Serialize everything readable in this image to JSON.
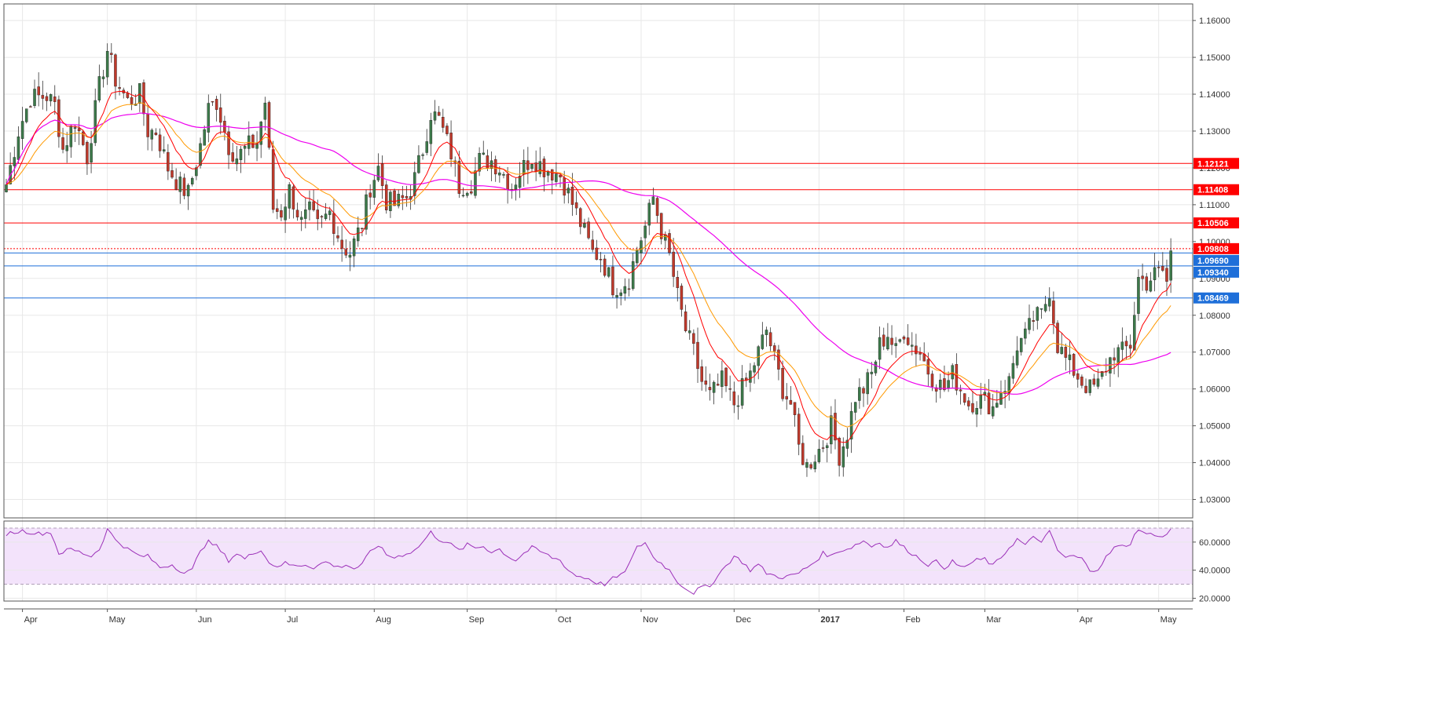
{
  "colors": {
    "up_candle": "#3c7a4a",
    "down_candle": "#c0392b",
    "wick": "#333333",
    "ema_fast": "#ff0000",
    "ema_slow": "#ff9900",
    "sma_long": "#ee00ee",
    "resistance": "#ff0000",
    "support": "#1e6fd9",
    "rsi_line": "#9b30b8",
    "rsi_band": "#f3e3fb",
    "grid": "#e8e8e8"
  },
  "chart_data": {
    "type": "candlestick",
    "title": "",
    "xlabel": "",
    "ylabel": "",
    "ylim": [
      1.025,
      1.1645
    ],
    "grid": true,
    "price_axis_ticks": [
      "1.16000",
      "1.15000",
      "1.14000",
      "1.13000",
      "1.12000",
      "1.11000",
      "1.10000",
      "1.09000",
      "1.08000",
      "1.07000",
      "1.06000",
      "1.05000",
      "1.04000",
      "1.03000"
    ],
    "price_tick_values": [
      1.16,
      1.15,
      1.14,
      1.13,
      1.12,
      1.11,
      1.1,
      1.09,
      1.08,
      1.07,
      1.06,
      1.05,
      1.04,
      1.03
    ],
    "months": [
      {
        "label": "Apr",
        "bar": 4,
        "bold": false
      },
      {
        "label": "May",
        "bar": 25,
        "bold": false
      },
      {
        "label": "Jun",
        "bar": 47,
        "bold": false
      },
      {
        "label": "Jul",
        "bar": 69,
        "bold": false
      },
      {
        "label": "Aug",
        "bar": 91,
        "bold": false
      },
      {
        "label": "Sep",
        "bar": 114,
        "bold": false
      },
      {
        "label": "Oct",
        "bar": 136,
        "bold": false
      },
      {
        "label": "Nov",
        "bar": 157,
        "bold": false
      },
      {
        "label": "Dec",
        "bar": 180,
        "bold": false
      },
      {
        "label": "2017",
        "bar": 201,
        "bold": true
      },
      {
        "label": "Feb",
        "bar": 222,
        "bold": false
      },
      {
        "label": "Mar",
        "bar": 242,
        "bold": false
      },
      {
        "label": "Apr",
        "bar": 265,
        "bold": false
      },
      {
        "label": "May",
        "bar": 285,
        "bold": false
      }
    ],
    "levels": [
      {
        "value": 1.12121,
        "label": "1.12121",
        "kind": "resistance",
        "style": "solid"
      },
      {
        "value": 1.11408,
        "label": "1.11408",
        "kind": "resistance",
        "style": "solid"
      },
      {
        "value": 1.10506,
        "label": "1.10506",
        "kind": "resistance",
        "style": "solid"
      },
      {
        "value": 1.09808,
        "label": "1.09808",
        "kind": "resistance",
        "style": "dotted"
      },
      {
        "value": 1.0969,
        "label": "1.09690",
        "kind": "support",
        "style": "solid"
      },
      {
        "value": 1.0934,
        "label": "1.09340",
        "kind": "support",
        "style": "solid"
      },
      {
        "value": 1.08469,
        "label": "1.08469",
        "kind": "support",
        "style": "solid"
      }
    ],
    "anchors": [
      [
        0,
        1.1155
      ],
      [
        3,
        1.13
      ],
      [
        6,
        1.139
      ],
      [
        10,
        1.1395
      ],
      [
        12,
        1.137
      ],
      [
        14,
        1.125
      ],
      [
        17,
        1.133
      ],
      [
        20,
        1.123
      ],
      [
        23,
        1.142
      ],
      [
        25,
        1.152
      ],
      [
        27,
        1.144
      ],
      [
        30,
        1.138
      ],
      [
        33,
        1.14
      ],
      [
        35,
        1.13
      ],
      [
        37,
        1.13
      ],
      [
        40,
        1.12
      ],
      [
        43,
        1.115
      ],
      [
        45,
        1.113
      ],
      [
        48,
        1.126
      ],
      [
        50,
        1.136
      ],
      [
        52,
        1.138
      ],
      [
        55,
        1.126
      ],
      [
        57,
        1.123
      ],
      [
        60,
        1.126
      ],
      [
        62,
        1.127
      ],
      [
        64,
        1.138
      ],
      [
        66,
        1.109
      ],
      [
        68,
        1.108
      ],
      [
        70,
        1.114
      ],
      [
        73,
        1.105
      ],
      [
        75,
        1.108
      ],
      [
        77,
        1.104
      ],
      [
        80,
        1.108
      ],
      [
        83,
        1.099
      ],
      [
        85,
        1.097
      ],
      [
        88,
        1.105
      ],
      [
        90,
        1.115
      ],
      [
        92,
        1.12
      ],
      [
        94,
        1.111
      ],
      [
        96,
        1.11
      ],
      [
        99,
        1.112
      ],
      [
        101,
        1.117
      ],
      [
        103,
        1.125
      ],
      [
        105,
        1.135
      ],
      [
        107,
        1.133
      ],
      [
        110,
        1.124
      ],
      [
        112,
        1.115
      ],
      [
        115,
        1.116
      ],
      [
        117,
        1.122
      ],
      [
        120,
        1.122
      ],
      [
        122,
        1.12
      ],
      [
        125,
        1.115
      ],
      [
        127,
        1.119
      ],
      [
        130,
        1.123
      ],
      [
        133,
        1.12
      ],
      [
        135,
        1.119
      ],
      [
        137,
        1.118
      ],
      [
        139,
        1.113
      ],
      [
        142,
        1.105
      ],
      [
        145,
        1.097
      ],
      [
        147,
        1.096
      ],
      [
        150,
        1.088
      ],
      [
        152,
        1.088
      ],
      [
        154,
        1.09
      ],
      [
        156,
        1.098
      ],
      [
        158,
        1.104
      ],
      [
        160,
        1.112
      ],
      [
        162,
        1.103
      ],
      [
        164,
        1.096
      ],
      [
        166,
        1.085
      ],
      [
        168,
        1.076
      ],
      [
        170,
        1.07
      ],
      [
        172,
        1.062
      ],
      [
        174,
        1.058
      ],
      [
        177,
        1.062
      ],
      [
        180,
        1.056
      ],
      [
        182,
        1.06
      ],
      [
        184,
        1.064
      ],
      [
        186,
        1.07
      ],
      [
        188,
        1.076
      ],
      [
        190,
        1.068
      ],
      [
        192,
        1.06
      ],
      [
        194,
        1.056
      ],
      [
        196,
        1.044
      ],
      [
        198,
        1.039
      ],
      [
        200,
        1.042
      ],
      [
        202,
        1.045
      ],
      [
        204,
        1.05
      ],
      [
        206,
        1.042
      ],
      [
        208,
        1.048
      ],
      [
        210,
        1.058
      ],
      [
        212,
        1.06
      ],
      [
        214,
        1.064
      ],
      [
        216,
        1.072
      ],
      [
        218,
        1.075
      ],
      [
        220,
        1.07
      ],
      [
        222,
        1.076
      ],
      [
        224,
        1.072
      ],
      [
        226,
        1.07
      ],
      [
        228,
        1.065
      ],
      [
        230,
        1.062
      ],
      [
        232,
        1.06
      ],
      [
        234,
        1.064
      ],
      [
        236,
        1.06
      ],
      [
        238,
        1.056
      ],
      [
        240,
        1.057
      ],
      [
        242,
        1.057
      ],
      [
        244,
        1.055
      ],
      [
        246,
        1.06
      ],
      [
        248,
        1.062
      ],
      [
        250,
        1.072
      ],
      [
        252,
        1.074
      ],
      [
        254,
        1.079
      ],
      [
        256,
        1.08
      ],
      [
        258,
        1.087
      ],
      [
        260,
        1.072
      ],
      [
        262,
        1.068
      ],
      [
        264,
        1.065
      ],
      [
        266,
        1.062
      ],
      [
        268,
        1.06
      ],
      [
        270,
        1.061
      ],
      [
        272,
        1.066
      ],
      [
        274,
        1.07
      ],
      [
        276,
        1.07
      ],
      [
        278,
        1.072
      ],
      [
        280,
        1.09
      ],
      [
        282,
        1.089
      ],
      [
        284,
        1.091
      ],
      [
        286,
        1.092
      ],
      [
        287,
        1.089
      ],
      [
        288,
        1.0975
      ]
    ],
    "rsi": {
      "ylim": [
        18,
        75
      ],
      "ticks": [
        "60.0000",
        "40.0000",
        "20.0000"
      ],
      "tick_values": [
        60,
        40,
        20
      ],
      "upper_band": 70,
      "lower_band": 30,
      "anchors": [
        [
          0,
          66
        ],
        [
          4,
          68
        ],
        [
          8,
          66
        ],
        [
          11,
          67
        ],
        [
          13,
          52
        ],
        [
          16,
          55
        ],
        [
          19,
          52
        ],
        [
          21,
          50
        ],
        [
          23,
          55
        ],
        [
          25,
          69
        ],
        [
          27,
          62
        ],
        [
          30,
          55
        ],
        [
          33,
          50
        ],
        [
          35,
          50
        ],
        [
          38,
          42
        ],
        [
          41,
          44
        ],
        [
          44,
          38
        ],
        [
          46,
          40
        ],
        [
          48,
          55
        ],
        [
          50,
          60
        ],
        [
          52,
          57
        ],
        [
          55,
          47
        ],
        [
          57,
          52
        ],
        [
          59,
          48
        ],
        [
          61,
          52
        ],
        [
          63,
          55
        ],
        [
          65,
          45
        ],
        [
          67,
          43
        ],
        [
          69,
          45
        ],
        [
          71,
          43
        ],
        [
          74,
          44
        ],
        [
          76,
          42
        ],
        [
          79,
          46
        ],
        [
          82,
          42
        ],
        [
          84,
          44
        ],
        [
          86,
          41
        ],
        [
          88,
          44
        ],
        [
          90,
          53
        ],
        [
          92,
          58
        ],
        [
          94,
          51
        ],
        [
          96,
          49
        ],
        [
          99,
          52
        ],
        [
          101,
          54
        ],
        [
          103,
          60
        ],
        [
          105,
          67
        ],
        [
          107,
          62
        ],
        [
          109,
          60
        ],
        [
          112,
          54
        ],
        [
          114,
          58
        ],
        [
          116,
          56
        ],
        [
          118,
          57
        ],
        [
          120,
          53
        ],
        [
          122,
          55
        ],
        [
          124,
          50
        ],
        [
          126,
          47
        ],
        [
          128,
          52
        ],
        [
          130,
          56
        ],
        [
          133,
          52
        ],
        [
          135,
          49
        ],
        [
          137,
          47
        ],
        [
          139,
          40
        ],
        [
          141,
          36
        ],
        [
          144,
          34
        ],
        [
          146,
          31
        ],
        [
          148,
          30
        ],
        [
          150,
          34
        ],
        [
          152,
          36
        ],
        [
          154,
          44
        ],
        [
          156,
          56
        ],
        [
          158,
          60
        ],
        [
          160,
          49
        ],
        [
          162,
          45
        ],
        [
          164,
          40
        ],
        [
          166,
          32
        ],
        [
          168,
          27
        ],
        [
          170,
          24
        ],
        [
          172,
          28
        ],
        [
          174,
          28
        ],
        [
          176,
          37
        ],
        [
          178,
          43
        ],
        [
          180,
          50
        ],
        [
          182,
          46
        ],
        [
          184,
          40
        ],
        [
          186,
          44
        ],
        [
          188,
          38
        ],
        [
          190,
          36
        ],
        [
          192,
          35
        ],
        [
          194,
          36
        ],
        [
          196,
          38
        ],
        [
          198,
          42
        ],
        [
          200,
          46
        ],
        [
          202,
          52
        ],
        [
          204,
          50
        ],
        [
          206,
          54
        ],
        [
          208,
          55
        ],
        [
          210,
          58
        ],
        [
          212,
          61
        ],
        [
          214,
          57
        ],
        [
          216,
          60
        ],
        [
          218,
          56
        ],
        [
          220,
          61
        ],
        [
          222,
          56
        ],
        [
          224,
          52
        ],
        [
          226,
          48
        ],
        [
          228,
          44
        ],
        [
          230,
          46
        ],
        [
          232,
          42
        ],
        [
          234,
          46
        ],
        [
          236,
          42
        ],
        [
          238,
          44
        ],
        [
          240,
          47
        ],
        [
          242,
          48
        ],
        [
          244,
          43
        ],
        [
          246,
          49
        ],
        [
          248,
          56
        ],
        [
          250,
          62
        ],
        [
          252,
          58
        ],
        [
          254,
          63
        ],
        [
          256,
          61
        ],
        [
          258,
          67
        ],
        [
          260,
          54
        ],
        [
          262,
          49
        ],
        [
          264,
          50
        ],
        [
          266,
          48
        ],
        [
          268,
          40
        ],
        [
          270,
          41
        ],
        [
          272,
          49
        ],
        [
          274,
          56
        ],
        [
          276,
          57
        ],
        [
          278,
          59
        ],
        [
          280,
          70
        ],
        [
          282,
          65
        ],
        [
          284,
          66
        ],
        [
          286,
          63
        ],
        [
          287,
          66
        ],
        [
          288,
          69
        ]
      ]
    }
  }
}
